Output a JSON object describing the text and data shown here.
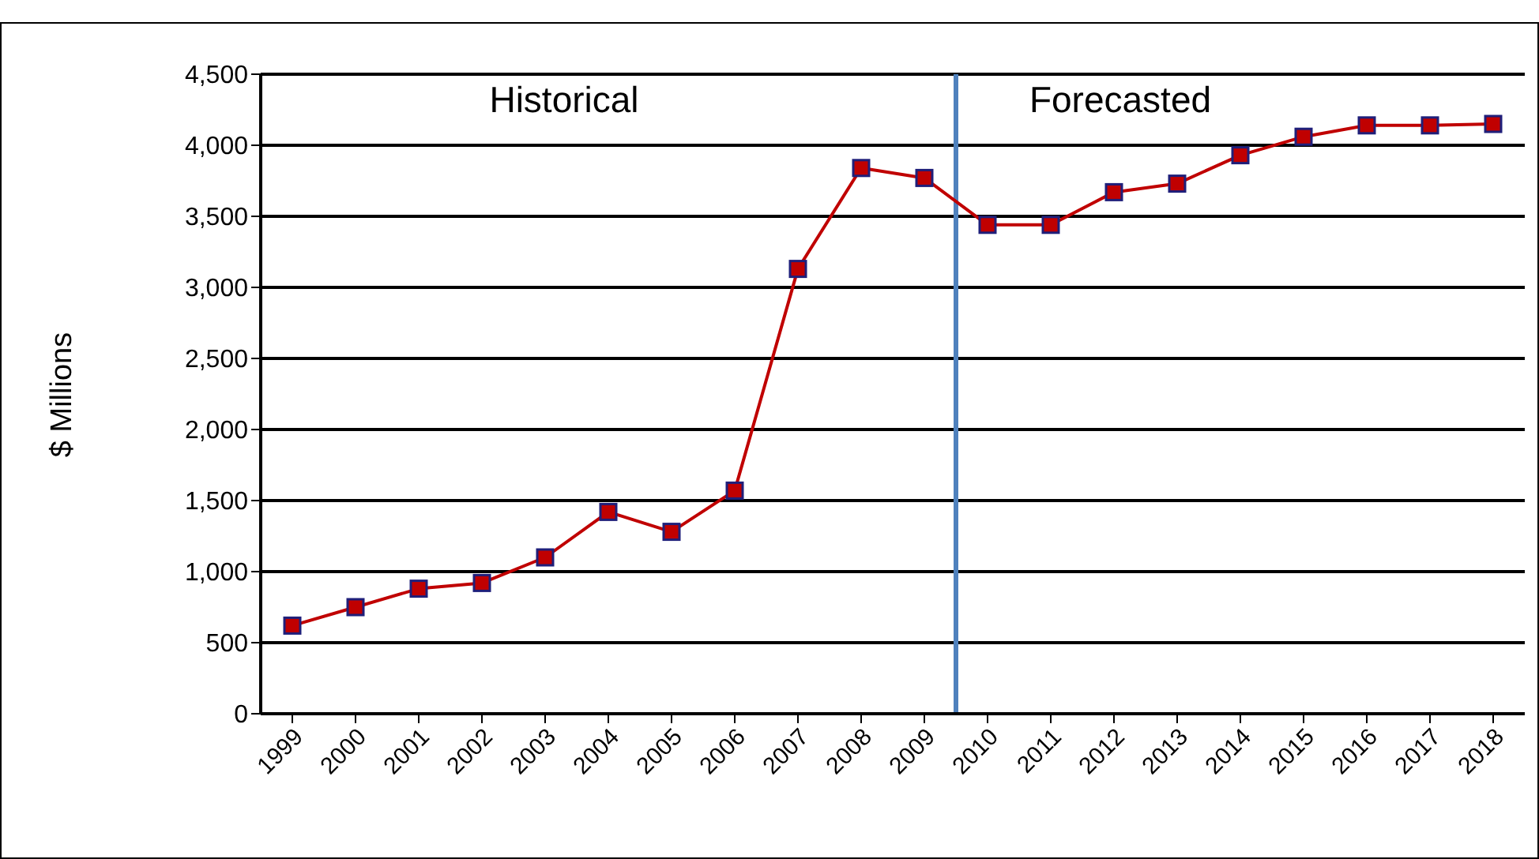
{
  "chart_data": {
    "type": "line",
    "ylabel": "$ Millions",
    "x": [
      1999,
      2000,
      2001,
      2002,
      2003,
      2004,
      2005,
      2006,
      2007,
      2008,
      2009,
      2010,
      2011,
      2012,
      2013,
      2014,
      2015,
      2016,
      2017,
      2018
    ],
    "xlim": [
      1998.5,
      2018.5
    ],
    "xticks": [
      1999,
      2000,
      2001,
      2002,
      2003,
      2004,
      2005,
      2006,
      2007,
      2008,
      2009,
      2010,
      2011,
      2012,
      2013,
      2014,
      2015,
      2016,
      2017,
      2018
    ],
    "series": [
      {
        "color": "#c00000",
        "values": [
          620,
          750,
          880,
          920,
          1100,
          1420,
          1280,
          1570,
          3130,
          3840,
          3770,
          3440,
          3440,
          3670,
          3730,
          3930,
          4060,
          4140,
          4140,
          4150
        ]
      }
    ],
    "ylim": [
      0,
      4500
    ],
    "yticks": [
      0,
      500,
      {
        "value": 1000,
        "label": "1,000"
      },
      {
        "value": 1500,
        "label": "1,500"
      },
      {
        "value": 2000,
        "label": "2,000"
      },
      {
        "value": 2500,
        "label": "2,500"
      },
      {
        "value": 3000,
        "label": "3,000"
      },
      {
        "value": 3500,
        "label": "3,500"
      },
      {
        "value": 4000,
        "label": "4,000"
      },
      {
        "value": 4500,
        "label": "4,500"
      }
    ],
    "grid": "y",
    "marker": "square",
    "line_style": "solid",
    "ref_lines": [
      {
        "axis": "x",
        "value": 2009.5,
        "color": "#4f81bd"
      }
    ],
    "annotations": [
      "Historical",
      "Forecasted"
    ]
  }
}
